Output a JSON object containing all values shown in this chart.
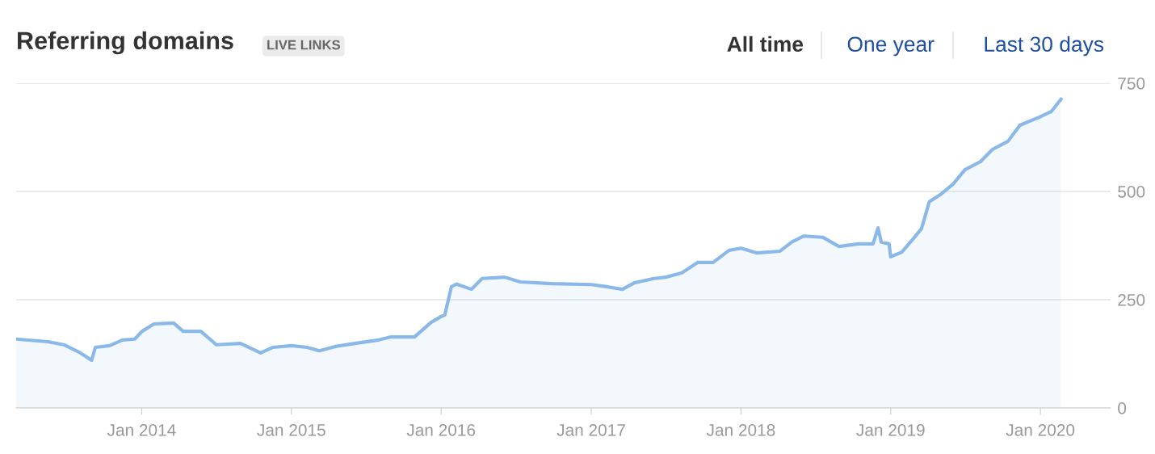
{
  "chart_data": {
    "type": "area",
    "title": "Referring domains",
    "annotations": [
      "LIVE LINKS",
      "All time",
      "One year",
      "Last 30 days"
    ],
    "x": [
      "2013-03-01",
      "2013-05-17",
      "2013-06-25",
      "2013-08-01",
      "2013-09-01",
      "2013-09-10",
      "2013-10-15",
      "2013-11-15",
      "2013-12-15",
      "2014-01-02",
      "2014-01-31",
      "2014-03-20",
      "2014-04-12",
      "2014-05-25",
      "2014-07-02",
      "2014-08-30",
      "2014-10-18",
      "2014-11-17",
      "2015-01-01",
      "2015-02-08",
      "2015-03-10",
      "2015-04-18",
      "2015-06-05",
      "2015-08-02",
      "2015-09-01",
      "2015-10-28",
      "2015-12-08",
      "2016-01-01",
      "2016-01-10",
      "2016-01-26",
      "2016-02-08",
      "2016-03-15",
      "2016-04-10",
      "2016-06-04",
      "2016-07-12",
      "2016-09-27",
      "2017-01-01",
      "2017-02-08",
      "2017-03-18",
      "2017-04-16",
      "2017-06-03",
      "2017-07-02",
      "2017-08-10",
      "2017-09-17",
      "2017-10-25",
      "2017-12-03",
      "2018-01-01",
      "2018-02-08",
      "2018-04-06",
      "2018-05-05",
      "2018-06-03",
      "2018-07-20",
      "2018-08-28",
      "2018-10-15",
      "2018-11-19",
      "2018-12-01",
      "2018-12-09",
      "2018-12-28",
      "2019-01-01",
      "2019-01-28",
      "2019-02-26",
      "2019-03-17",
      "2019-04-05",
      "2019-05-04",
      "2019-06-02",
      "2019-07-01",
      "2019-08-08",
      "2019-09-06",
      "2019-10-14",
      "2019-11-12",
      "2019-12-30",
      "2020-01-28",
      "2020-02-20"
    ],
    "series": [
      {
        "color": "#8ab8e8",
        "values": [
          159,
          153,
          146,
          129,
          110,
          140,
          144,
          157,
          159,
          177,
          194,
          196,
          177,
          177,
          146,
          149,
          127,
          140,
          144,
          140,
          132,
          142,
          149,
          157,
          164,
          164,
          198,
          211,
          215,
          280,
          286,
          274,
          299,
          302,
          291,
          287,
          285,
          280,
          274,
          289,
          299,
          302,
          312,
          336,
          336,
          364,
          369,
          358,
          362,
          383,
          397,
          394,
          373,
          379,
          379,
          416,
          383,
          379,
          349,
          360,
          392,
          414,
          476,
          494,
          517,
          550,
          569,
          597,
          616,
          653,
          672,
          685,
          713
        ]
      }
    ],
    "xlim": [
      "2013-03-01",
      "2020-06-20"
    ],
    "xticks": [
      {
        "value": "2014-01-01",
        "label": "Jan 2014"
      },
      {
        "value": "2015-01-01",
        "label": "Jan 2015"
      },
      {
        "value": "2016-01-01",
        "label": "Jan 2016"
      },
      {
        "value": "2017-01-01",
        "label": "Jan 2017"
      },
      {
        "value": "2018-01-01",
        "label": "Jan 2018"
      },
      {
        "value": "2019-01-01",
        "label": "Jan 2019"
      },
      {
        "value": "2020-01-01",
        "label": "Jan 2020"
      }
    ],
    "ylim": [
      0,
      750
    ],
    "yticks": [
      0,
      250,
      500,
      750
    ],
    "grid": "y",
    "legend": false
  }
}
